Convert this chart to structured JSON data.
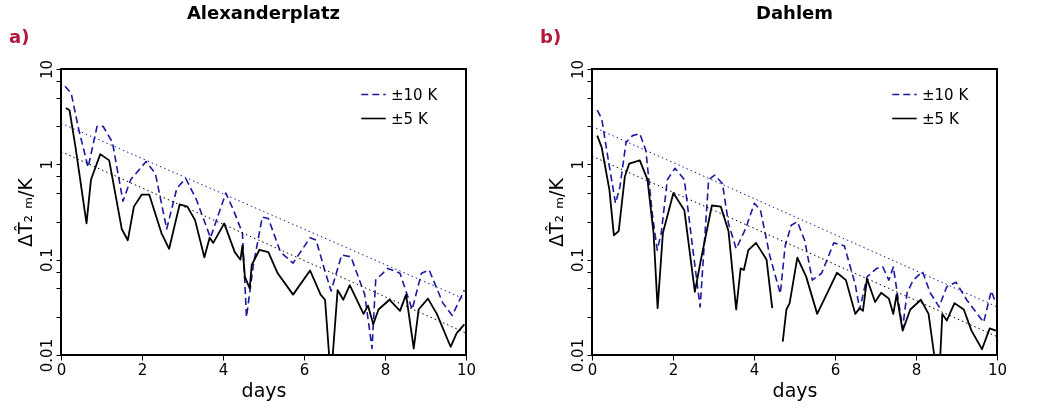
{
  "chart_data": [
    {
      "type": "line",
      "title": "Alexanderplatz",
      "annotations": [
        "a)"
      ],
      "xlabel": "days",
      "ylabel": "ΔT̂₂ ₘ/K",
      "log": "y",
      "legend": "top right",
      "xlim": [
        0,
        10
      ],
      "xticks": [
        0,
        2,
        4,
        6,
        8,
        10
      ],
      "ylim": [
        0.01,
        10
      ],
      "yticks": [
        0.01,
        {
          "value": 0.025,
          "label": null
        },
        {
          "value": 0.05,
          "label": null
        },
        {
          "value": 0.075,
          "label": null
        },
        0.1,
        {
          "value": 0.25,
          "label": null
        },
        {
          "value": 0.5,
          "label": null
        },
        {
          "value": 0.75,
          "label": null
        },
        1,
        {
          "value": 2.5,
          "label": null
        },
        {
          "value": 5,
          "label": null
        },
        {
          "value": 7.5,
          "label": null
        },
        10
      ],
      "series": [
        {
          "name": "±10 K",
          "color": "#1a1aa0",
          "line_style": "dashed",
          "x": [
            0.1,
            0.25,
            0.44,
            0.67,
            0.89,
            1.04,
            1.27,
            1.53,
            1.72,
            2.1,
            2.33,
            2.61,
            2.86,
            3.08,
            3.35,
            3.69,
            4.07,
            4.26,
            4.48,
            4.58,
            4.75,
            4.97,
            5.12,
            5.42,
            5.73,
            6.15,
            6.3,
            6.52,
            6.67,
            6.93,
            7.16,
            7.5,
            7.68,
            7.77,
            8.07,
            8.37,
            8.67,
            8.9,
            9.09,
            9.43,
            9.66,
            9.96
          ],
          "values": [
            6.6,
            5.6,
            2.3,
            0.93,
            2.5,
            2.5,
            1.7,
            0.41,
            0.69,
            1.07,
            0.8,
            0.21,
            0.56,
            0.71,
            0.42,
            0.17,
            0.5,
            0.33,
            0.19,
            0.025,
            0.088,
            0.28,
            0.27,
            0.12,
            0.092,
            0.17,
            0.16,
            0.075,
            0.047,
            0.112,
            0.107,
            0.043,
            0.0117,
            0.061,
            0.081,
            0.072,
            0.03,
            0.072,
            0.078,
            0.035,
            0.026,
            0.048
          ]
        },
        {
          "name": "±5 K",
          "color": "#000000",
          "line_style": "solid",
          "x": [
            0.12,
            0.21,
            0.36,
            0.63,
            0.74,
            0.97,
            1.19,
            1.5,
            1.65,
            1.8,
            1.99,
            2.18,
            2.48,
            2.67,
            2.93,
            3.12,
            3.31,
            3.54,
            3.67,
            3.76,
            4.03,
            4.29,
            4.43,
            4.48,
            4.54,
            4.66,
            4.71,
            4.9,
            5.12,
            5.35,
            5.73,
            6.15,
            6.41,
            6.52,
            6.62,
            6.71,
            6.83,
            6.97,
            7.13,
            7.47,
            7.58,
            7.71,
            7.84,
            8.11,
            8.37,
            8.52,
            8.71,
            8.83,
            9.06,
            9.28,
            9.62,
            9.77,
            9.96
          ],
          "values": [
            3.9,
            3.7,
            1.5,
            0.24,
            0.69,
            1.28,
            1.1,
            0.21,
            0.16,
            0.36,
            0.48,
            0.48,
            0.19,
            0.13,
            0.38,
            0.36,
            0.26,
            0.106,
            0.17,
            0.15,
            0.24,
            0.12,
            0.1,
            0.14,
            0.066,
            0.05,
            0.088,
            0.127,
            0.12,
            0.072,
            0.043,
            0.077,
            0.043,
            0.038,
            0.01,
            0.01,
            0.048,
            0.038,
            0.054,
            0.027,
            0.033,
            0.021,
            0.03,
            0.038,
            0.029,
            0.043,
            0.0117,
            0.03,
            0.039,
            0.027,
            0.0122,
            0.017,
            0.021
          ]
        },
        {
          "color": "#1a1aa0",
          "line_style": "dotted",
          "x": [
            0,
            10
          ],
          "values": [
            2.7,
            0.038
          ]
        },
        {
          "color": "#000000",
          "line_style": "dotted",
          "x": [
            0,
            10
          ],
          "values": [
            1.36,
            0.017
          ]
        }
      ]
    },
    {
      "type": "line",
      "title": "Dahlem",
      "annotations": [
        "b)"
      ],
      "xlabel": "days",
      "ylabel": "ΔT̂₂ ₘ/K",
      "log": "y",
      "legend": "top right",
      "xlim": [
        0,
        10
      ],
      "xticks": [
        0,
        2,
        4,
        6,
        8,
        10
      ],
      "ylim": [
        0.01,
        10
      ],
      "yticks": [
        0.01,
        {
          "value": 0.025,
          "label": null
        },
        {
          "value": 0.05,
          "label": null
        },
        {
          "value": 0.075,
          "label": null
        },
        0.1,
        {
          "value": 0.25,
          "label": null
        },
        {
          "value": 0.5,
          "label": null
        },
        {
          "value": 0.75,
          "label": null
        },
        1,
        {
          "value": 2.5,
          "label": null
        },
        {
          "value": 5,
          "label": null
        },
        {
          "value": 7.5,
          "label": null
        },
        10
      ],
      "series": [
        {
          "name": "±10 K",
          "color": "#1a1aa0",
          "line_style": "dashed",
          "x": [
            0.13,
            0.24,
            0.39,
            0.58,
            0.69,
            0.84,
            1.0,
            1.18,
            1.33,
            1.49,
            1.61,
            1.71,
            1.86,
            2.05,
            2.28,
            2.47,
            2.67,
            2.77,
            2.88,
            3.03,
            3.22,
            3.37,
            3.56,
            3.79,
            4.01,
            4.16,
            4.39,
            4.65,
            4.77,
            4.92,
            5.07,
            5.25,
            5.44,
            5.67,
            5.97,
            6.23,
            6.5,
            6.61,
            6.79,
            7.03,
            7.18,
            7.33,
            7.44,
            7.67,
            7.78,
            7.93,
            8.16,
            8.35,
            8.57,
            8.76,
            8.99,
            9.25,
            9.67,
            9.86,
            9.97
          ],
          "values": [
            3.7,
            3.0,
            1.2,
            0.39,
            0.58,
            1.7,
            2.0,
            2.1,
            1.4,
            0.3,
            0.126,
            0.19,
            0.69,
            0.91,
            0.69,
            0.15,
            0.032,
            0.14,
            0.69,
            0.77,
            0.63,
            0.24,
            0.13,
            0.21,
            0.39,
            0.33,
            0.11,
            0.044,
            0.14,
            0.23,
            0.25,
            0.16,
            0.061,
            0.072,
            0.15,
            0.14,
            0.055,
            0.03,
            0.066,
            0.081,
            0.084,
            0.061,
            0.084,
            0.019,
            0.045,
            0.061,
            0.075,
            0.045,
            0.032,
            0.052,
            0.058,
            0.038,
            0.022,
            0.047,
            0.035
          ]
        },
        {
          "name": "±5 K",
          "color": "#000000",
          "line_style": "solid",
          "x": [
            0.13,
            0.24,
            0.43,
            0.54,
            0.66,
            0.81,
            0.92,
            1.18,
            1.37,
            1.52,
            1.62,
            1.75,
            2.01,
            2.28,
            2.54,
            2.69,
            2.96,
            3.18,
            3.37,
            3.56,
            3.67,
            3.75,
            3.86,
            4.05,
            4.31,
            4.45,
            4.58,
            4.71,
            4.8,
            4.88,
            5.07,
            5.29,
            5.56,
            5.79,
            6.05,
            6.27,
            6.5,
            6.61,
            6.69,
            6.79,
            6.99,
            7.14,
            7.33,
            7.44,
            7.52,
            7.67,
            7.86,
            8.12,
            8.31,
            8.45,
            8.6,
            8.65,
            8.76,
            8.95,
            9.18,
            9.37,
            9.63,
            9.82,
            9.97
          ],
          "values": [
            2.0,
            1.5,
            0.54,
            0.18,
            0.2,
            0.74,
            1.02,
            1.1,
            0.69,
            0.19,
            0.031,
            0.19,
            0.5,
            0.33,
            0.046,
            0.1,
            0.37,
            0.36,
            0.2,
            0.03,
            0.081,
            0.078,
            0.126,
            0.15,
            0.1,
            0.031,
            null,
            0.0138,
            0.03,
            0.035,
            0.105,
            0.066,
            0.027,
            0.043,
            0.073,
            0.061,
            0.027,
            0.031,
            0.029,
            0.063,
            0.036,
            0.045,
            0.039,
            0.027,
            0.043,
            0.018,
            0.03,
            0.038,
            0.027,
            0.01,
            0.01,
            0.027,
            0.023,
            0.035,
            0.03,
            0.018,
            0.0115,
            0.019,
            0.018
          ]
        },
        {
          "color": "#1a1aa0",
          "line_style": "dotted",
          "x": [
            0,
            10
          ],
          "values": [
            2.5,
            0.032
          ]
        },
        {
          "color": "#000000",
          "line_style": "dotted",
          "x": [
            0,
            10
          ],
          "values": [
            1.22,
            0.0156
          ]
        }
      ]
    }
  ]
}
